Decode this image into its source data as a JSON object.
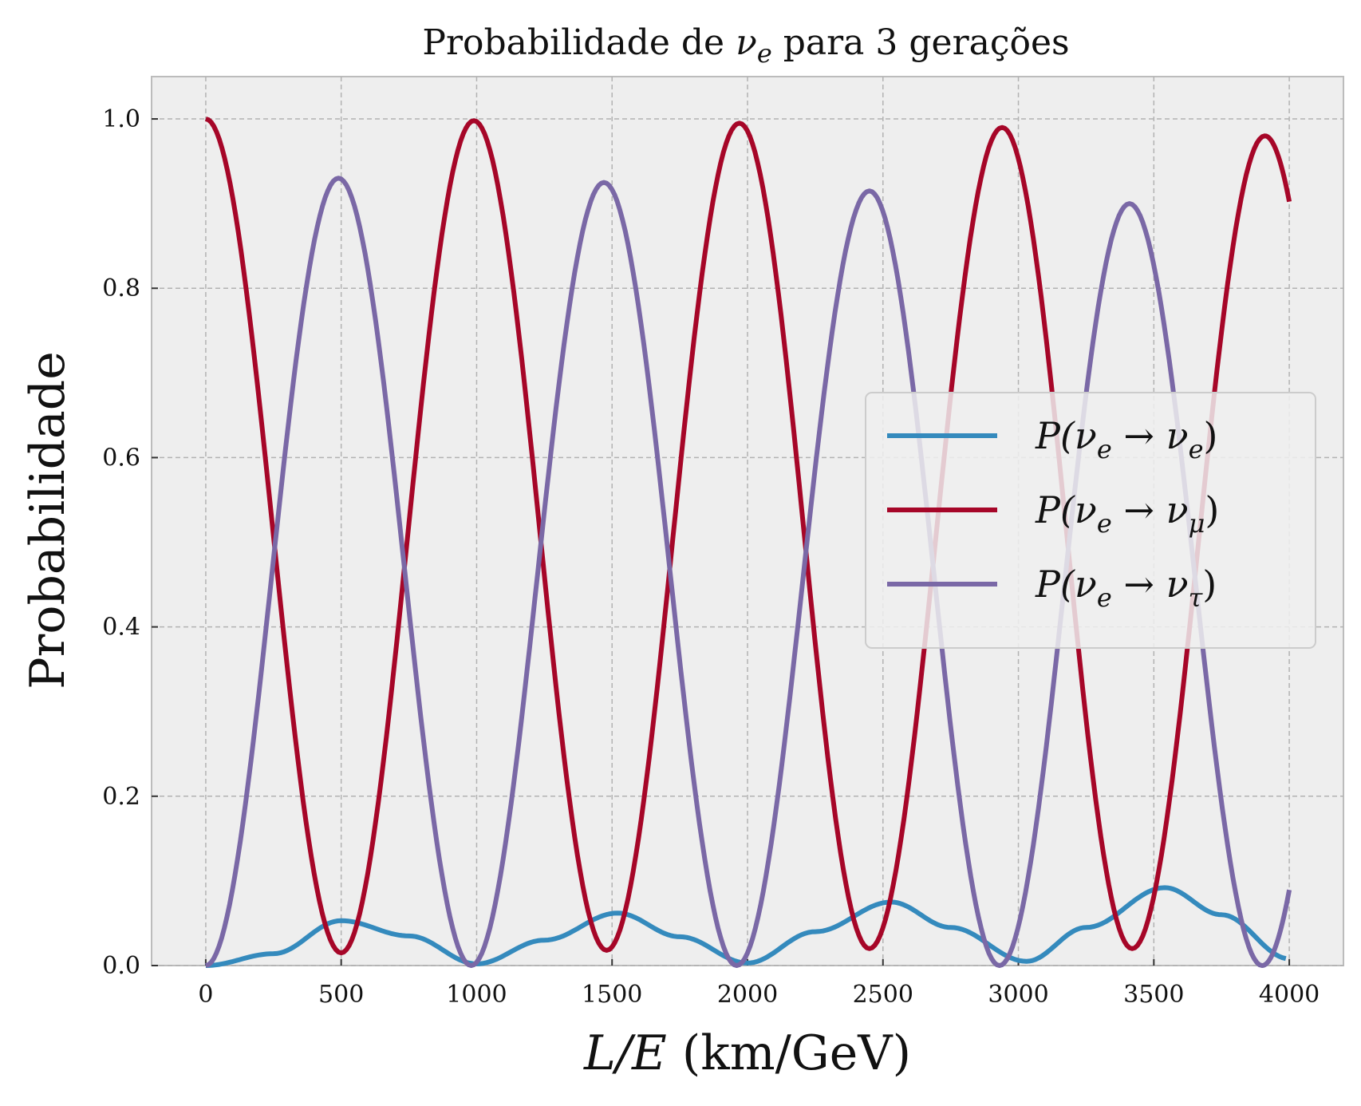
{
  "chart_data": {
    "type": "line",
    "title": "Probabilidade de νe para 3 gerações",
    "title_parts": {
      "prefix": "Probabilidade de ",
      "nu": "ν",
      "sub": "e",
      "suffix": " para 3 gerações"
    },
    "xlabel": "L/E (km/GeV)",
    "xlabel_parts": {
      "var": "L/E",
      "unit": " (km/GeV)"
    },
    "ylabel": "Probabilidade",
    "xlim": [
      -200,
      4200
    ],
    "ylim": [
      0.0,
      1.05
    ],
    "xticks": [
      0,
      500,
      1000,
      1500,
      2000,
      2500,
      3000,
      3500,
      4000
    ],
    "xtick_labels": [
      "0",
      "500",
      "1000",
      "1500",
      "2000",
      "2500",
      "3000",
      "3500",
      "4000"
    ],
    "yticks": [
      0.0,
      0.2,
      0.4,
      0.6,
      0.8,
      1.0
    ],
    "ytick_labels": [
      "0.0",
      "0.2",
      "0.4",
      "0.6",
      "0.8",
      "1.0"
    ],
    "grid": true,
    "legend_position": "center-right",
    "background": "#eeeeee",
    "series": [
      {
        "name": "P(νe → νe)",
        "label_parts": {
          "nu_sub_left": "e",
          "nu_sub_right": "e"
        },
        "color": "#348abd",
        "x": [
          0,
          250,
          500,
          750,
          1000,
          1250,
          1520,
          1750,
          2000,
          2250,
          2530,
          2750,
          3030,
          3250,
          3540,
          3750,
          4000
        ],
        "y": [
          0.0,
          0.014,
          0.053,
          0.035,
          0.002,
          0.03,
          0.062,
          0.034,
          0.003,
          0.04,
          0.075,
          0.045,
          0.005,
          0.045,
          0.092,
          0.06,
          0.008
        ]
      },
      {
        "name": "P(νe → νμ)",
        "label_parts": {
          "nu_sub_left": "e",
          "nu_sub_right": "μ"
        },
        "color": "#a60628",
        "x": [
          0,
          250,
          500,
          750,
          990,
          1250,
          1480,
          1750,
          1970,
          2250,
          2450,
          2700,
          2940,
          3200,
          3420,
          3700,
          3910,
          4000
        ],
        "y": [
          1.0,
          0.49,
          0.015,
          0.52,
          0.998,
          0.48,
          0.018,
          0.5,
          0.995,
          0.45,
          0.02,
          0.55,
          0.99,
          0.4,
          0.02,
          0.6,
          0.98,
          0.92
        ],
        "peaks_x": [
          0,
          990,
          1970,
          2940,
          3910
        ],
        "peaks_y": [
          1.0,
          0.998,
          0.995,
          0.99,
          0.98
        ],
        "troughs_x": [
          500,
          1480,
          2450,
          3420
        ],
        "troughs_y": [
          0.015,
          0.018,
          0.02,
          0.02
        ],
        "end": [
          4000,
          0.92
        ]
      },
      {
        "name": "P(νe → ντ)",
        "label_parts": {
          "nu_sub_left": "e",
          "nu_sub_right": "τ"
        },
        "color": "#7a68a6",
        "x": [
          0,
          250,
          490,
          750,
          980,
          1250,
          1470,
          1750,
          1960,
          2250,
          2450,
          2700,
          2930,
          3200,
          3410,
          3700,
          3900,
          4000
        ],
        "y": [
          0.0,
          0.5,
          0.93,
          0.45,
          0.0,
          0.5,
          0.925,
          0.46,
          0.0,
          0.52,
          0.915,
          0.4,
          0.0,
          0.55,
          0.9,
          0.35,
          0.0,
          0.075
        ],
        "peaks_x": [
          490,
          1470,
          2450,
          3410
        ],
        "peaks_y": [
          0.93,
          0.925,
          0.915,
          0.9
        ],
        "troughs_x": [
          0,
          980,
          1960,
          2930,
          3900
        ],
        "troughs_y": [
          0.0,
          0.0,
          0.0,
          0.0,
          0.0
        ],
        "end": [
          4000,
          0.075
        ]
      }
    ]
  }
}
